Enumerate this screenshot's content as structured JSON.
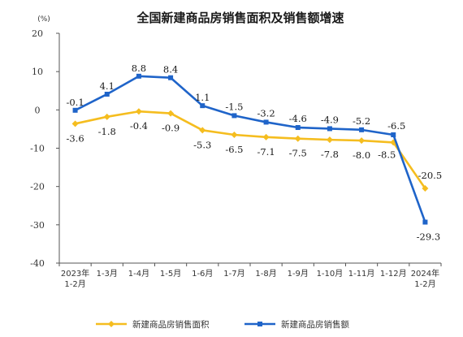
{
  "chart_data": {
    "type": "line",
    "title": "全国新建商品房销售面积及销售额增速",
    "unit_label": "(%)",
    "ylim": [
      -40,
      20
    ],
    "yticks": [
      20,
      10,
      0,
      -10,
      -20,
      -30,
      -40
    ],
    "grid": false,
    "legend_position": "bottom",
    "categories": [
      [
        "2023年",
        "1-2月"
      ],
      [
        "1-3月"
      ],
      [
        "1-4月"
      ],
      [
        "1-5月"
      ],
      [
        "1-6月"
      ],
      [
        "1-7月"
      ],
      [
        "1-8月"
      ],
      [
        "1-9月"
      ],
      [
        "1-10月"
      ],
      [
        "1-11月"
      ],
      [
        "1-12月"
      ],
      [
        "2024年",
        "1-2月"
      ]
    ],
    "series": [
      {
        "name": "新建商品房销售面积",
        "color": "#f5bd1f",
        "marker": "diamond",
        "values": [
          -3.6,
          -1.8,
          -0.4,
          -0.9,
          -5.3,
          -6.5,
          -7.1,
          -7.5,
          -7.8,
          -8.0,
          -8.5,
          -20.5
        ],
        "labels": [
          "-3.6",
          "-1.8",
          "-0.4",
          "-0.9",
          "-5.3",
          "-6.5",
          "-7.1",
          "-7.5",
          "-7.8",
          "-8.0",
          "-8.5",
          "-20.5"
        ]
      },
      {
        "name": "新建商品房销售额",
        "color": "#1f64c9",
        "marker": "square",
        "values": [
          -0.1,
          4.1,
          8.8,
          8.4,
          1.1,
          -1.5,
          -3.2,
          -4.6,
          -4.9,
          -5.2,
          -6.5,
          -29.3
        ],
        "labels": [
          "-0.1",
          "4.1",
          "8.8",
          "8.4",
          "1.1",
          "-1.5",
          "-3.2",
          "-4.6",
          "-4.9",
          "-5.2",
          "-6.5",
          "-29.3"
        ]
      }
    ]
  }
}
